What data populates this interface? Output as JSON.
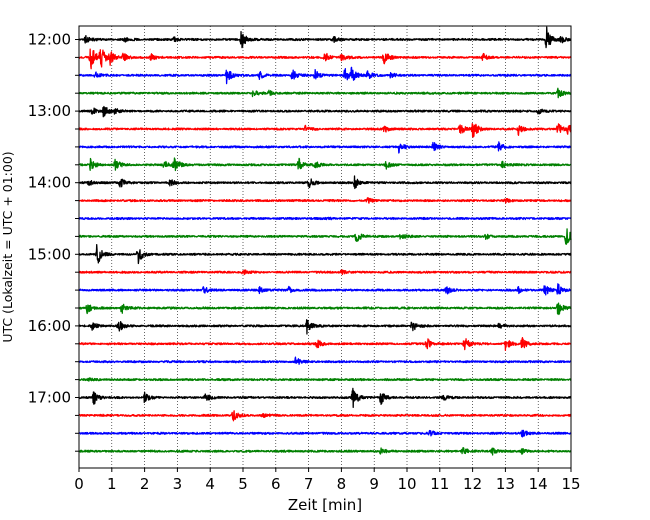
{
  "chart_data": {
    "type": "line",
    "title": "",
    "xlabel": "Zeit  [min]",
    "ylabel": "UTC (Lokalzeit = UTC + 01:00)",
    "xlim": [
      0,
      15
    ],
    "x_ticks": [
      0,
      1,
      2,
      3,
      4,
      5,
      6,
      7,
      8,
      9,
      10,
      11,
      12,
      13,
      14,
      15
    ],
    "x_tick_labels": [
      "0",
      "1",
      "2",
      "3",
      "4",
      "5",
      "6",
      "7",
      "8",
      "9",
      "10",
      "11",
      "12",
      "13",
      "14",
      "15"
    ],
    "y_tick_labels": [
      "12:00",
      "13:00",
      "14:00",
      "15:00",
      "16:00",
      "17:00"
    ],
    "trace_minutes": 15,
    "grid": "x-dotted",
    "colors": [
      "#000000",
      "#ff0000",
      "#0000ff",
      "#008000"
    ],
    "series": [
      {
        "start": "12:00",
        "color": "#000000",
        "events": [
          [
            0.2,
            0.4
          ],
          [
            1.4,
            0.25
          ],
          [
            2.9,
            0.2
          ],
          [
            4.95,
            0.9
          ],
          [
            7.75,
            0.45
          ],
          [
            14.25,
            1.3
          ],
          [
            14.7,
            0.3
          ]
        ]
      },
      {
        "start": "12:15",
        "color": "#ff0000",
        "events": [
          [
            0.35,
            1.4
          ],
          [
            0.65,
            1.2
          ],
          [
            0.95,
            0.6
          ],
          [
            1.35,
            0.45
          ],
          [
            2.2,
            0.3
          ],
          [
            7.5,
            0.5
          ],
          [
            8.0,
            0.45
          ],
          [
            9.3,
            0.8
          ],
          [
            12.3,
            0.4
          ]
        ]
      },
      {
        "start": "12:30",
        "color": "#0000ff",
        "events": [
          [
            0.5,
            0.3
          ],
          [
            4.5,
            0.8
          ],
          [
            5.5,
            0.4
          ],
          [
            6.5,
            0.6
          ],
          [
            7.2,
            0.5
          ],
          [
            8.1,
            0.7
          ],
          [
            8.3,
            0.75
          ],
          [
            8.8,
            0.4
          ],
          [
            9.5,
            0.35
          ]
        ]
      },
      {
        "start": "12:45",
        "color": "#008000",
        "events": [
          [
            5.3,
            0.35
          ],
          [
            5.8,
            0.3
          ],
          [
            14.6,
            0.45
          ]
        ]
      },
      {
        "start": "13:00",
        "color": "#000000",
        "events": [
          [
            0.4,
            0.35
          ],
          [
            0.75,
            0.6
          ],
          [
            1.1,
            0.3
          ],
          [
            14.0,
            0.3
          ]
        ]
      },
      {
        "start": "13:15",
        "color": "#ff0000",
        "events": [
          [
            6.9,
            0.3
          ],
          [
            9.3,
            0.35
          ],
          [
            11.6,
            0.7
          ],
          [
            12.0,
            0.95
          ],
          [
            13.4,
            0.6
          ],
          [
            14.6,
            0.55
          ],
          [
            14.9,
            0.45
          ]
        ]
      },
      {
        "start": "13:30",
        "color": "#0000ff",
        "events": [
          [
            9.75,
            0.55
          ],
          [
            10.8,
            0.5
          ],
          [
            12.8,
            0.45
          ]
        ]
      },
      {
        "start": "13:45",
        "color": "#008000",
        "events": [
          [
            0.35,
            0.6
          ],
          [
            1.1,
            0.6
          ],
          [
            2.6,
            0.5
          ],
          [
            2.9,
            0.9
          ],
          [
            6.7,
            0.7
          ],
          [
            7.2,
            0.3
          ],
          [
            9.35,
            0.4
          ],
          [
            12.9,
            0.35
          ]
        ]
      },
      {
        "start": "14:00",
        "color": "#000000",
        "events": [
          [
            0.3,
            0.3
          ],
          [
            1.25,
            0.55
          ],
          [
            2.75,
            0.45
          ],
          [
            7.0,
            0.55
          ],
          [
            8.4,
            0.65
          ]
        ]
      },
      {
        "start": "14:15",
        "color": "#ff0000",
        "events": [
          [
            8.8,
            0.25
          ],
          [
            13.0,
            0.2
          ]
        ]
      },
      {
        "start": "14:30",
        "color": "#0000ff",
        "events": [
          [
            7.5,
            0.15
          ]
        ]
      },
      {
        "start": "14:45",
        "color": "#008000",
        "events": [
          [
            8.45,
            0.65
          ],
          [
            9.8,
            0.3
          ],
          [
            12.4,
            0.25
          ],
          [
            14.85,
            1.0
          ]
        ]
      },
      {
        "start": "15:00",
        "color": "#000000",
        "events": [
          [
            0.55,
            1.1
          ],
          [
            1.8,
            0.95
          ]
        ]
      },
      {
        "start": "15:15",
        "color": "#ff0000",
        "events": [
          [
            5.0,
            0.25
          ],
          [
            8.0,
            0.2
          ]
        ]
      },
      {
        "start": "15:30",
        "color": "#0000ff",
        "events": [
          [
            3.8,
            0.35
          ],
          [
            5.5,
            0.3
          ],
          [
            6.4,
            0.3
          ],
          [
            11.2,
            0.4
          ],
          [
            13.4,
            0.35
          ],
          [
            14.2,
            0.55
          ],
          [
            14.6,
            0.6
          ]
        ]
      },
      {
        "start": "15:45",
        "color": "#008000",
        "events": [
          [
            0.25,
            0.5
          ],
          [
            1.3,
            0.55
          ],
          [
            14.6,
            0.75
          ]
        ]
      },
      {
        "start": "16:00",
        "color": "#000000",
        "events": [
          [
            0.4,
            0.35
          ],
          [
            1.2,
            0.6
          ],
          [
            6.95,
            0.8
          ],
          [
            10.15,
            0.6
          ],
          [
            12.8,
            0.3
          ]
        ]
      },
      {
        "start": "16:15",
        "color": "#ff0000",
        "events": [
          [
            7.25,
            0.45
          ],
          [
            10.6,
            0.65
          ],
          [
            11.75,
            0.75
          ],
          [
            13.0,
            0.6
          ],
          [
            13.5,
            0.65
          ]
        ]
      },
      {
        "start": "16:30",
        "color": "#0000ff",
        "events": [
          [
            6.6,
            0.45
          ]
        ]
      },
      {
        "start": "16:45",
        "color": "#008000",
        "events": [
          [
            0.3,
            0.1
          ]
        ]
      },
      {
        "start": "17:00",
        "color": "#000000",
        "events": [
          [
            0.45,
            0.75
          ],
          [
            2.0,
            0.55
          ],
          [
            3.85,
            0.4
          ],
          [
            8.35,
            1.3
          ],
          [
            9.2,
            0.65
          ],
          [
            11.1,
            0.3
          ]
        ]
      },
      {
        "start": "17:15",
        "color": "#ff0000",
        "events": [
          [
            4.7,
            0.55
          ],
          [
            5.6,
            0.2
          ]
        ]
      },
      {
        "start": "17:30",
        "color": "#0000ff",
        "events": [
          [
            10.7,
            0.3
          ],
          [
            13.5,
            0.35
          ]
        ]
      },
      {
        "start": "17:45",
        "color": "#008000",
        "events": [
          [
            9.2,
            0.35
          ],
          [
            11.7,
            0.45
          ],
          [
            12.6,
            0.35
          ],
          [
            13.5,
            0.25
          ]
        ]
      }
    ]
  }
}
